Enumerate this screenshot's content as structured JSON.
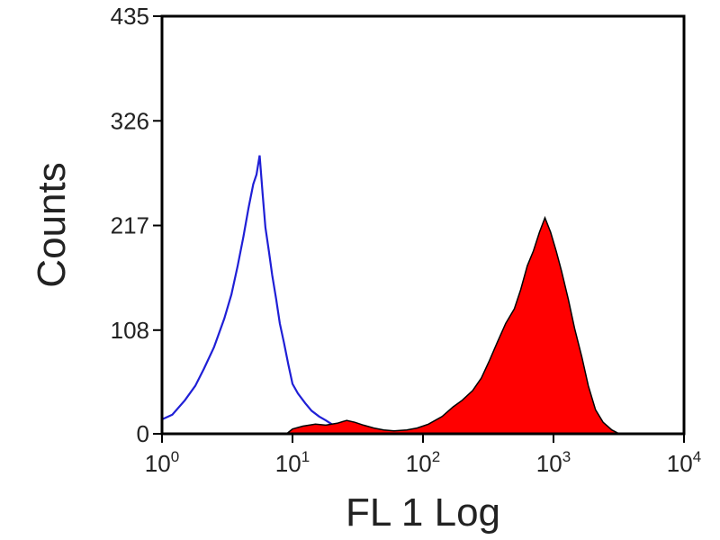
{
  "chart_data": {
    "type": "area",
    "title": "",
    "xlabel": "FL 1 Log",
    "ylabel": "Counts",
    "xscale": "log",
    "xlim": [
      1,
      10000
    ],
    "ylim": [
      0,
      435
    ],
    "x_ticks": [
      {
        "base": "10",
        "exp": "0",
        "value": 1
      },
      {
        "base": "10",
        "exp": "1",
        "value": 10
      },
      {
        "base": "10",
        "exp": "2",
        "value": 100
      },
      {
        "base": "10",
        "exp": "3",
        "value": 1000
      },
      {
        "base": "10",
        "exp": "4",
        "value": 10000
      }
    ],
    "y_ticks": [
      "0",
      "108",
      "217",
      "326",
      "435"
    ],
    "grid": false,
    "legend": "none",
    "series": [
      {
        "style": "outline",
        "color": "#1f1fd6",
        "x": [
          1,
          1.2,
          1.5,
          1.8,
          2.1,
          2.5,
          3.0,
          3.4,
          3.8,
          4.2,
          4.6,
          5.0,
          5.3,
          5.6,
          5.9,
          6.2,
          6.6,
          7.0,
          7.5,
          8.0,
          8.6,
          9.3,
          10.0,
          11.0,
          12.5,
          14.0,
          16.0,
          18.0,
          20.0,
          23.0,
          26.0,
          30.0,
          34.0,
          38.0
        ],
        "y": [
          15,
          20,
          35,
          50,
          68,
          90,
          120,
          145,
          175,
          205,
          235,
          260,
          270,
          290,
          250,
          215,
          190,
          165,
          140,
          115,
          95,
          72,
          52,
          42,
          32,
          24,
          18,
          14,
          10,
          8,
          6,
          4,
          3,
          2
        ]
      },
      {
        "style": "filled",
        "color": "#ff0000",
        "x": [
          9.0,
          10.0,
          12.0,
          15.0,
          18.0,
          22.0,
          26.0,
          30.0,
          35.0,
          42.0,
          50.0,
          60.0,
          75.0,
          90.0,
          110.0,
          140.0,
          170.0,
          200.0,
          240.0,
          280.0,
          320.0,
          370.0,
          430.0,
          500.0,
          560.0,
          630.0,
          700.0,
          780.0,
          860.0,
          950.0,
          1050.0,
          1150.0,
          1300.0,
          1450.0,
          1650.0,
          1850.0,
          2100.0,
          2400.0,
          2800.0,
          3200.0
        ],
        "y": [
          0,
          5,
          8,
          10,
          9,
          11,
          14,
          12,
          9,
          6,
          4,
          3,
          4,
          6,
          10,
          18,
          28,
          35,
          45,
          58,
          75,
          95,
          115,
          130,
          150,
          175,
          190,
          210,
          225,
          210,
          190,
          170,
          140,
          110,
          80,
          50,
          25,
          12,
          4,
          0
        ]
      }
    ]
  }
}
